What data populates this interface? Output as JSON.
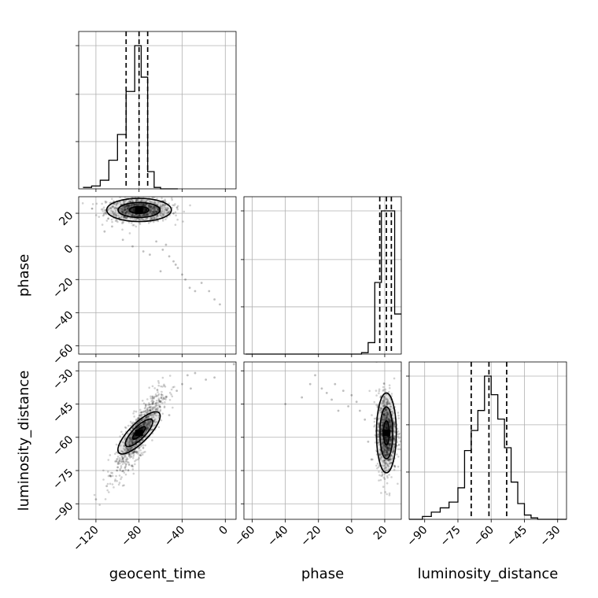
{
  "chart_data": {
    "type": "corner",
    "parameters": [
      "geocent_time",
      "phase",
      "luminosity_distance"
    ],
    "axes": {
      "geocent_time": {
        "label": "geocent_time",
        "range": [
          -136,
          10
        ],
        "ticks": [
          -120,
          -80,
          -40,
          0
        ],
        "tick_labels": [
          "−120",
          "−80",
          "−40",
          "0"
        ]
      },
      "phase": {
        "label": "phase",
        "range": [
          -65,
          30
        ],
        "ticks": [
          -60,
          -40,
          -20,
          0,
          20
        ],
        "tick_labels": [
          "−60",
          "−40",
          "−20",
          "0",
          "20"
        ]
      },
      "luminosity_distance": {
        "label": "luminosity_distance",
        "range": [
          -97,
          -26
        ],
        "ticks": [
          -90,
          -75,
          -60,
          -45,
          -30
        ],
        "tick_labels": [
          "−90",
          "−75",
          "−60",
          "−45",
          "−30"
        ]
      }
    },
    "histograms": [
      {
        "parameter": "geocent_time",
        "bin_edges": [
          -132,
          -124,
          -116,
          -108,
          -100,
          -92,
          -84,
          -78,
          -72,
          -66,
          -60,
          -52,
          -44
        ],
        "counts": [
          1,
          2,
          6,
          20,
          38,
          68,
          100,
          78,
          12,
          1,
          0,
          0
        ],
        "quantiles": [
          -92,
          -80,
          -72
        ]
      },
      {
        "parameter": "phase",
        "bin_edges": [
          -64,
          6,
          10,
          14,
          18,
          22,
          26,
          30
        ],
        "counts": [
          0,
          1,
          8,
          50,
          100,
          100,
          28
        ],
        "quantiles": [
          17,
          21,
          24
        ]
      },
      {
        "parameter": "luminosity_distance",
        "bin_edges": [
          -97,
          -91,
          -87,
          -83,
          -79,
          -75,
          -72,
          -69,
          -66,
          -63,
          -60,
          -57,
          -54,
          -51,
          -48,
          -45,
          -42,
          -39,
          -36,
          -33,
          -30,
          -26
        ],
        "counts": [
          0,
          2,
          5,
          8,
          12,
          22,
          48,
          62,
          76,
          100,
          87,
          70,
          50,
          26,
          11,
          3,
          1,
          0,
          0,
          0,
          0
        ],
        "quantiles": [
          -69,
          -61,
          -53
        ]
      }
    ],
    "scatter_2d": [
      {
        "x": "geocent_time",
        "y": "phase",
        "outliers": [
          [
            -64,
            3
          ],
          [
            -58,
            -2
          ],
          [
            -52,
            -6
          ],
          [
            -48,
            -9
          ],
          [
            -44,
            -13
          ],
          [
            -37,
            -20
          ],
          [
            -28,
            -27
          ],
          [
            -22,
            -22
          ],
          [
            -15,
            -27
          ],
          [
            -10,
            -32
          ],
          [
            -5,
            -35
          ],
          [
            -40,
            -17
          ],
          [
            -33,
            -25
          ],
          [
            -55,
            1
          ],
          [
            -46,
            -11
          ],
          [
            -105,
            12
          ],
          [
            -112,
            9
          ],
          [
            -95,
            4
          ],
          [
            -86,
            0
          ],
          [
            -70,
            -5
          ],
          [
            -76,
            -3
          ],
          [
            -60,
            -15
          ]
        ],
        "density_center": [
          -80,
          22
        ],
        "density_spread": [
          15,
          3.5
        ]
      },
      {
        "x": "geocent_time",
        "y": "luminosity_distance",
        "outliers": [
          [
            -40,
            -36
          ],
          [
            -35,
            -32
          ],
          [
            -28,
            -31
          ],
          [
            -10,
            -33
          ],
          [
            8,
            -27
          ],
          [
            -55,
            -42
          ],
          [
            -45,
            -39
          ],
          [
            -52,
            -50
          ],
          [
            -60,
            -44
          ],
          [
            -32,
            -38
          ],
          [
            -18,
            -34
          ],
          [
            -120,
            -88
          ],
          [
            -110,
            -82
          ]
        ],
        "density_center": [
          -80,
          -58
        ],
        "density_spread": [
          11,
          9
        ]
      },
      {
        "x": "phase",
        "y": "luminosity_distance",
        "outliers": [
          [
            -40,
            -45
          ],
          [
            -22,
            -32
          ],
          [
            -18,
            -38
          ],
          [
            -10,
            -36
          ],
          [
            -5,
            -39
          ],
          [
            0,
            -41
          ],
          [
            -12,
            -43
          ],
          [
            -2,
            -46
          ],
          [
            5,
            -48
          ],
          [
            8,
            -52
          ],
          [
            -15,
            -40
          ],
          [
            -8,
            -48
          ],
          [
            3,
            -44
          ],
          [
            -25,
            -36
          ],
          [
            10,
            -62
          ],
          [
            12,
            -70
          ],
          [
            -30,
            -42
          ]
        ],
        "density_center": [
          21,
          -58
        ],
        "density_spread": [
          3,
          9
        ]
      }
    ]
  }
}
